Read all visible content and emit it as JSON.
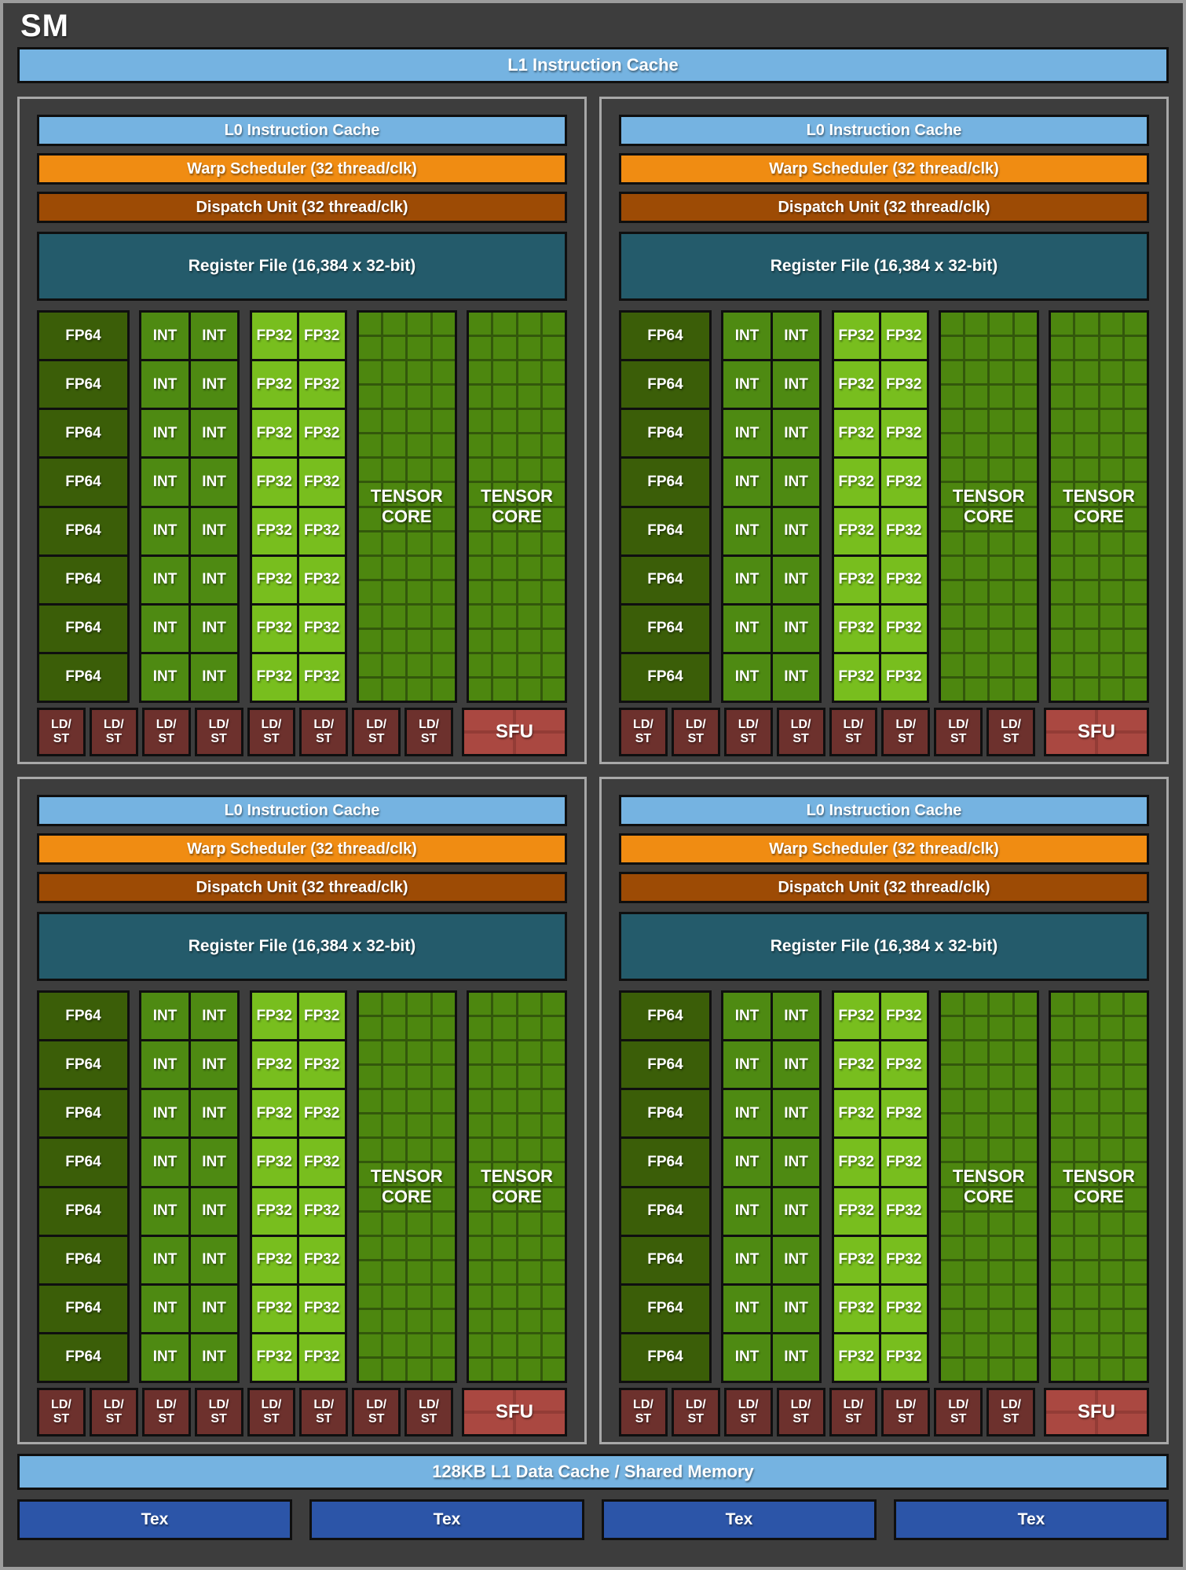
{
  "title": "SM",
  "colors": {
    "background": "#3d3d3d",
    "outer_border": "#9c9c9c",
    "partition_border": "#a8a8a8",
    "block_border": "#0f0f0f",
    "cache_blue": "#75b3e1",
    "scheduler_orange": "#f08c12",
    "dispatch_brown": "#9d4b05",
    "register_teal": "#245b6b",
    "fp64_green": "#3b5e08",
    "int_green": "#4e8a12",
    "fp32_green": "#78be1e",
    "tensor_cell_green": "#4d870f",
    "tensor_line_green": "#33580b",
    "ldst_maroon": "#6d312d",
    "sfu_red": "#aa4841",
    "tex_blue": "#2c55a8",
    "text": "#ffffff"
  },
  "top_bar": {
    "label": "L1 Instruction Cache"
  },
  "partitions_count": 4,
  "partition": {
    "l0_label": "L0 Instruction Cache",
    "warp_label": "Warp Scheduler (32 thread/clk)",
    "dispatch_label": "Dispatch Unit (32 thread/clk)",
    "regfile_label": "Register File (16,384 x 32-bit)",
    "core_rows": 8,
    "fp64_label": "FP64",
    "int_label": "INT",
    "int_cols": 2,
    "fp32_label": "FP32",
    "fp32_cols": 2,
    "tensor_blocks": 2,
    "tensor_rows": 16,
    "tensor_cols": 4,
    "tensor_label_line1": "TENSOR",
    "tensor_label_line2": "CORE",
    "ldst_count": 8,
    "ldst_line1": "LD/",
    "ldst_line2": "ST",
    "sfu_label": "SFU"
  },
  "bottom": {
    "data_cache_label": "128KB L1 Data Cache / Shared Memory",
    "tex_count": 4,
    "tex_label": "Tex"
  }
}
